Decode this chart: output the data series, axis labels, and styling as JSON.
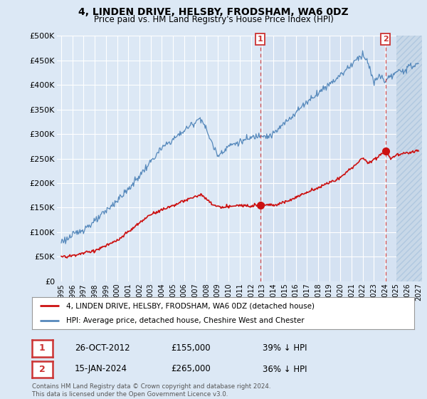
{
  "title": "4, LINDEN DRIVE, HELSBY, FRODSHAM, WA6 0DZ",
  "subtitle": "Price paid vs. HM Land Registry's House Price Index (HPI)",
  "ylim": [
    0,
    500000
  ],
  "yticks": [
    0,
    50000,
    100000,
    150000,
    200000,
    250000,
    300000,
    350000,
    400000,
    450000,
    500000
  ],
  "ytick_labels": [
    "£0",
    "£50K",
    "£100K",
    "£150K",
    "£200K",
    "£250K",
    "£300K",
    "£350K",
    "£400K",
    "£450K",
    "£500K"
  ],
  "hpi_color": "#5588bb",
  "price_color": "#cc1111",
  "sale1_date": "26-OCT-2012",
  "sale1_price": 155000,
  "sale1_pct": "39% ↓ HPI",
  "sale2_date": "15-JAN-2024",
  "sale2_price": 265000,
  "sale2_pct": "36% ↓ HPI",
  "legend_label1": "4, LINDEN DRIVE, HELSBY, FRODSHAM, WA6 0DZ (detached house)",
  "legend_label2": "HPI: Average price, detached house, Cheshire West and Chester",
  "footnote": "Contains HM Land Registry data © Crown copyright and database right 2024.\nThis data is licensed under the Open Government Licence v3.0.",
  "background_color": "#dce8f5",
  "plot_bg_color": "#dce8f5",
  "hatch_bg_color": "#c8d8e8",
  "grid_color": "#ffffff",
  "dashed_line_color": "#cc3333",
  "marker1_x": 2012.83,
  "marker2_x": 2024.04,
  "marker1_y": 155000,
  "marker2_y": 265000,
  "hatch_start": 2025.0,
  "xlim_left": 1994.6,
  "xlim_right": 2027.3
}
